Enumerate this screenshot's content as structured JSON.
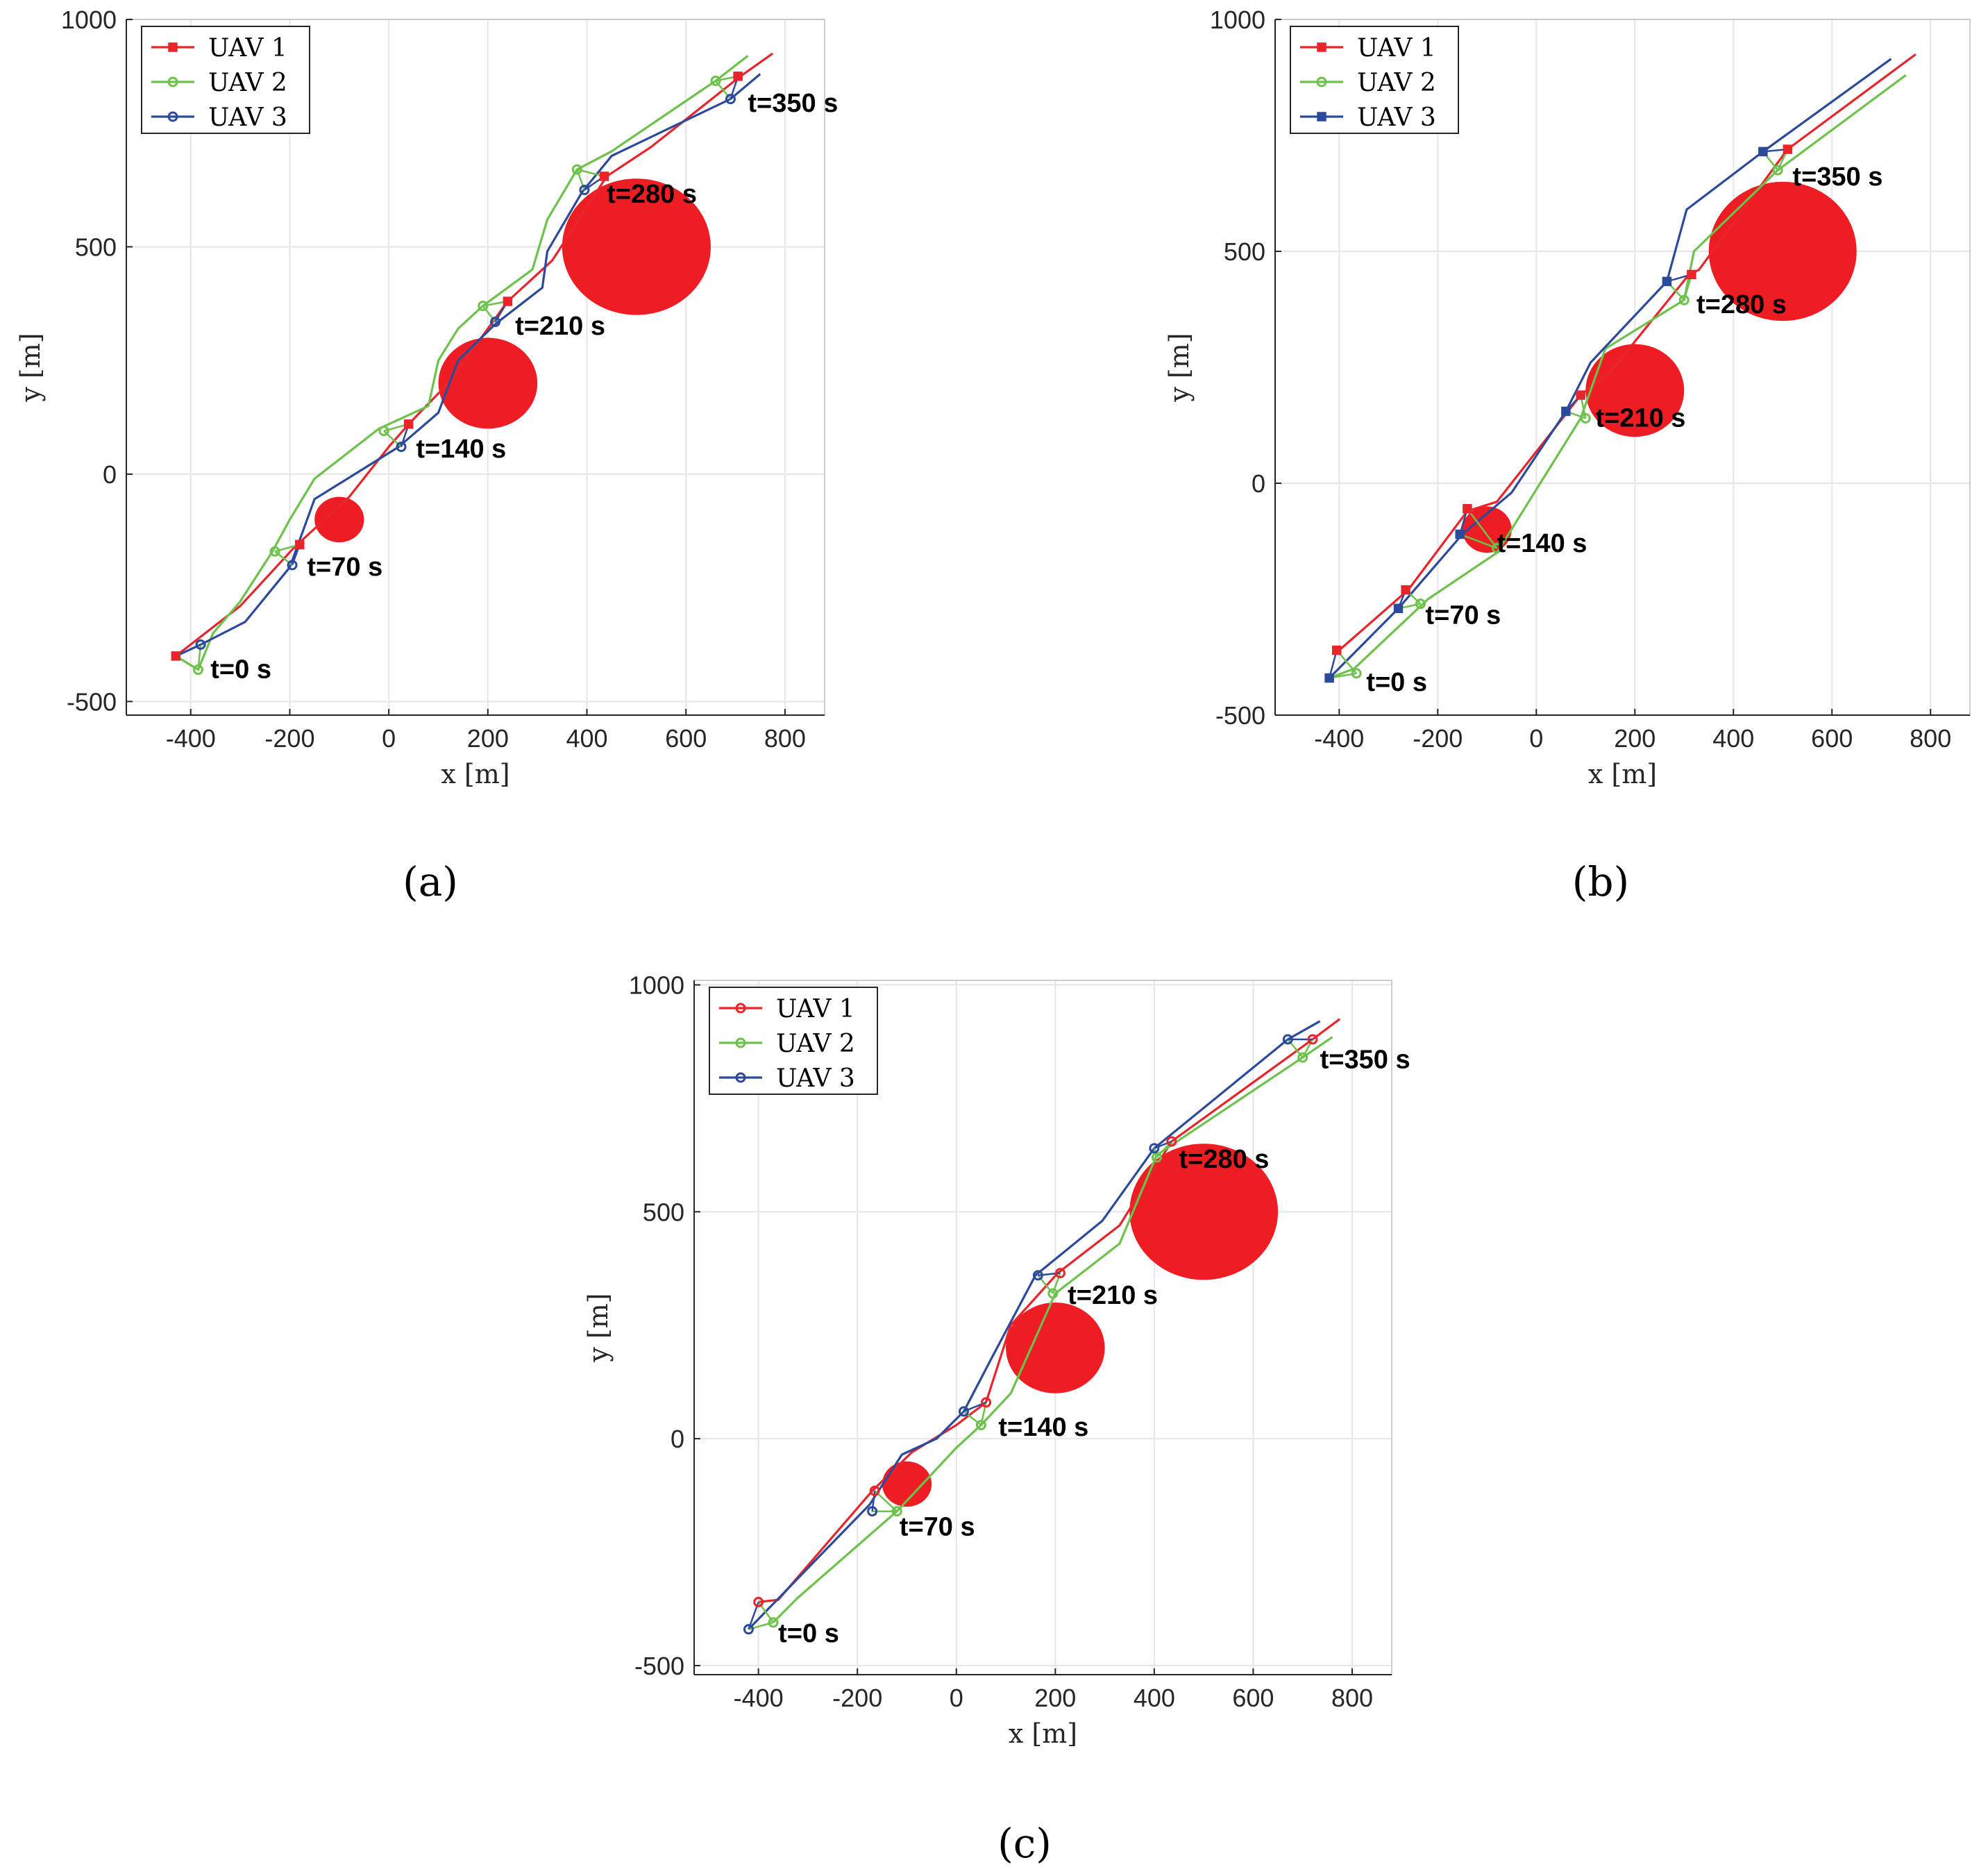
{
  "colors": {
    "uav1": "#e8252a",
    "uav2": "#6cc24a",
    "uav3": "#2c4a9c",
    "obstacle": "#ee1d24",
    "grid": "#e6e6e6",
    "axis": "#262626"
  },
  "chart_data": [
    {
      "type": "line",
      "caption": "(a)",
      "xlabel": "x [m]",
      "ylabel": "y [m]",
      "xlim": [
        -530,
        880
      ],
      "ylim": [
        -530,
        1000
      ],
      "xticks": [
        -400,
        -200,
        0,
        200,
        400,
        600,
        800
      ],
      "yticks": [
        -500,
        0,
        500,
        1000
      ],
      "grid": true,
      "legend_position": "top-left",
      "obstacles": [
        {
          "cx": -100,
          "cy": -100,
          "rx": 50,
          "ry": 50
        },
        {
          "cx": 200,
          "cy": 200,
          "rx": 100,
          "ry": 100
        },
        {
          "cx": 500,
          "cy": 500,
          "rx": 150,
          "ry": 150
        }
      ],
      "series": [
        {
          "name": "UAV 1",
          "color_key": "uav1",
          "marker": "square",
          "x": [
            -430,
            -300,
            -190,
            -80,
            0,
            40,
            120,
            240,
            330,
            440,
            530,
            710,
            775
          ],
          "y": [
            -400,
            -290,
            -160,
            -50,
            60,
            110,
            200,
            380,
            470,
            655,
            720,
            875,
            925
          ]
        },
        {
          "name": "UAV 2",
          "color_key": "uav2",
          "marker": "circle",
          "x": [
            -430,
            -385,
            -355,
            -300,
            -235,
            -200,
            -150,
            -20,
            80,
            100,
            140,
            190,
            290,
            320,
            380,
            450,
            660,
            725
          ],
          "y": [
            -400,
            -430,
            -350,
            -280,
            -170,
            -100,
            -10,
            100,
            150,
            250,
            320,
            370,
            450,
            560,
            670,
            710,
            865,
            920
          ]
        },
        {
          "name": "UAV 3",
          "color_key": "uav3",
          "marker": "circle",
          "x": [
            -430,
            -380,
            -290,
            -200,
            -150,
            20,
            100,
            140,
            215,
            310,
            320,
            390,
            450,
            690,
            750
          ],
          "y": [
            -400,
            -375,
            -325,
            -205,
            -55,
            60,
            135,
            250,
            330,
            410,
            490,
            620,
            700,
            825,
            880
          ]
        }
      ],
      "snapshots": [
        {
          "label": "t=0 s",
          "points": [
            [
              -430,
              -400
            ],
            [
              -385,
              -430
            ],
            [
              -380,
              -375
            ]
          ],
          "lx": -360,
          "ly": -430
        },
        {
          "label": "t=70 s",
          "points": [
            [
              -180,
              -155
            ],
            [
              -230,
              -170
            ],
            [
              -195,
              -200
            ]
          ],
          "lx": -165,
          "ly": -205
        },
        {
          "label": "t=140 s",
          "points": [
            [
              40,
              110
            ],
            [
              -10,
              95
            ],
            [
              25,
              60
            ]
          ],
          "lx": 55,
          "ly": 55
        },
        {
          "label": "t=210 s",
          "points": [
            [
              240,
              380
            ],
            [
              190,
              370
            ],
            [
              215,
              335
            ]
          ],
          "lx": 255,
          "ly": 325
        },
        {
          "label": "t=280 s",
          "points": [
            [
              435,
              655
            ],
            [
              380,
              670
            ],
            [
              395,
              625
            ]
          ],
          "lx": 440,
          "ly": 615
        },
        {
          "label": "t=350 s",
          "points": [
            [
              705,
              875
            ],
            [
              660,
              865
            ],
            [
              690,
              825
            ]
          ],
          "lx": 725,
          "ly": 815
        }
      ]
    },
    {
      "type": "line",
      "caption": "(b)",
      "xlabel": "x [m]",
      "ylabel": "y [m]",
      "xlim": [
        -530,
        880
      ],
      "ylim": [
        -500,
        1000
      ],
      "xticks": [
        -400,
        -200,
        0,
        200,
        400,
        600,
        800
      ],
      "yticks": [
        -500,
        0,
        500,
        1000
      ],
      "grid": true,
      "legend_position": "top-left",
      "obstacles": [
        {
          "cx": -100,
          "cy": -100,
          "rx": 50,
          "ry": 50
        },
        {
          "cx": 200,
          "cy": 200,
          "rx": 100,
          "ry": 100
        },
        {
          "cx": 500,
          "cy": 500,
          "rx": 150,
          "ry": 150
        }
      ],
      "series": [
        {
          "name": "UAV 1",
          "color_key": "uav1",
          "marker": "square",
          "x": [
            -400,
            -260,
            -140,
            -80,
            90,
            150,
            310,
            330,
            510,
            770
          ],
          "y": [
            -360,
            -230,
            -60,
            -40,
            190,
            240,
            450,
            460,
            720,
            925
          ]
        },
        {
          "name": "UAV 2",
          "color_key": "uav2",
          "marker": "circle",
          "x": [
            -420,
            -370,
            -220,
            -80,
            90,
            140,
            300,
            320,
            490,
            750
          ],
          "y": [
            -420,
            -400,
            -250,
            -150,
            140,
            290,
            395,
            500,
            675,
            880
          ]
        },
        {
          "name": "UAV 3",
          "color_key": "uav3",
          "marker": "square",
          "x": [
            -420,
            -280,
            -150,
            -50,
            60,
            110,
            265,
            305,
            460,
            720
          ],
          "y": [
            -420,
            -270,
            -110,
            -20,
            155,
            260,
            435,
            590,
            715,
            915
          ]
        }
      ],
      "snapshots": [
        {
          "label": "t=0 s",
          "points": [
            [
              -405,
              -360
            ],
            [
              -365,
              -410
            ],
            [
              -420,
              -420
            ]
          ],
          "lx": -345,
          "ly": -430
        },
        {
          "label": "t=70 s",
          "points": [
            [
              -265,
              -230
            ],
            [
              -235,
              -260
            ],
            [
              -280,
              -270
            ]
          ],
          "lx": -225,
          "ly": -285
        },
        {
          "label": "t=140 s",
          "points": [
            [
              -140,
              -55
            ],
            [
              -80,
              -140
            ],
            [
              -155,
              -110
            ]
          ],
          "lx": -80,
          "ly": -130
        },
        {
          "label": "t=210 s",
          "points": [
            [
              90,
              190
            ],
            [
              100,
              140
            ],
            [
              60,
              155
            ]
          ],
          "lx": 120,
          "ly": 140
        },
        {
          "label": "t=280 s",
          "points": [
            [
              315,
              450
            ],
            [
              300,
              395
            ],
            [
              265,
              435
            ]
          ],
          "lx": 325,
          "ly": 385
        },
        {
          "label": "t=350 s",
          "points": [
            [
              510,
              720
            ],
            [
              490,
              675
            ],
            [
              460,
              715
            ]
          ],
          "lx": 520,
          "ly": 660
        }
      ]
    },
    {
      "type": "line",
      "caption": "(c)",
      "xlabel": "x [m]",
      "ylabel": "y [m]",
      "xlim": [
        -530,
        880
      ],
      "ylim": [
        -520,
        1010
      ],
      "xticks": [
        -400,
        -200,
        0,
        200,
        400,
        600,
        800
      ],
      "yticks": [
        -500,
        0,
        500,
        1000
      ],
      "grid": true,
      "legend_position": "top-left",
      "obstacles": [
        {
          "cx": -100,
          "cy": -100,
          "rx": 50,
          "ry": 50
        },
        {
          "cx": 200,
          "cy": 200,
          "rx": 100,
          "ry": 100
        },
        {
          "cx": 500,
          "cy": 500,
          "rx": 150,
          "ry": 150
        }
      ],
      "series": [
        {
          "name": "UAV 1",
          "color_key": "uav1",
          "marker": "circle",
          "x": [
            -400,
            -360,
            -170,
            -90,
            0,
            60,
            110,
            205,
            330,
            435,
            720,
            775
          ],
          "y": [
            -360,
            -355,
            -115,
            -30,
            30,
            80,
            250,
            365,
            470,
            655,
            880,
            925
          ]
        },
        {
          "name": "UAV 2",
          "color_key": "uav2",
          "marker": "circle",
          "x": [
            -370,
            -320,
            -120,
            -60,
            0,
            50,
            110,
            200,
            330,
            405,
            700,
            760
          ],
          "y": [
            -405,
            -350,
            -160,
            -90,
            -20,
            30,
            100,
            320,
            430,
            625,
            840,
            885
          ]
        },
        {
          "name": "UAV 3",
          "color_key": "uav3",
          "marker": "circle",
          "x": [
            -420,
            -380,
            -175,
            -110,
            -40,
            15,
            70,
            160,
            295,
            400,
            670,
            735
          ],
          "y": [
            -420,
            -375,
            -145,
            -35,
            0,
            60,
            175,
            360,
            480,
            640,
            880,
            920
          ]
        }
      ],
      "snapshots": [
        {
          "label": "t=0 s",
          "points": [
            [
              -400,
              -360
            ],
            [
              -370,
              -405
            ],
            [
              -420,
              -420
            ]
          ],
          "lx": -360,
          "ly": -430
        },
        {
          "label": "t=70 s",
          "points": [
            [
              -165,
              -115
            ],
            [
              -120,
              -160
            ],
            [
              -170,
              -160
            ]
          ],
          "lx": -115,
          "ly": -195
        },
        {
          "label": "t=140 s",
          "points": [
            [
              60,
              80
            ],
            [
              50,
              30
            ],
            [
              15,
              60
            ]
          ],
          "lx": 85,
          "ly": 25
        },
        {
          "label": "t=210 s",
          "points": [
            [
              210,
              365
            ],
            [
              195,
              320
            ],
            [
              165,
              360
            ]
          ],
          "lx": 225,
          "ly": 315
        },
        {
          "label": "t=280 s",
          "points": [
            [
              435,
              655
            ],
            [
              405,
              620
            ],
            [
              400,
              640
            ]
          ],
          "lx": 450,
          "ly": 615
        },
        {
          "label": "t=350 s",
          "points": [
            [
              720,
              880
            ],
            [
              700,
              840
            ],
            [
              670,
              880
            ]
          ],
          "lx": 735,
          "ly": 835
        }
      ]
    }
  ]
}
